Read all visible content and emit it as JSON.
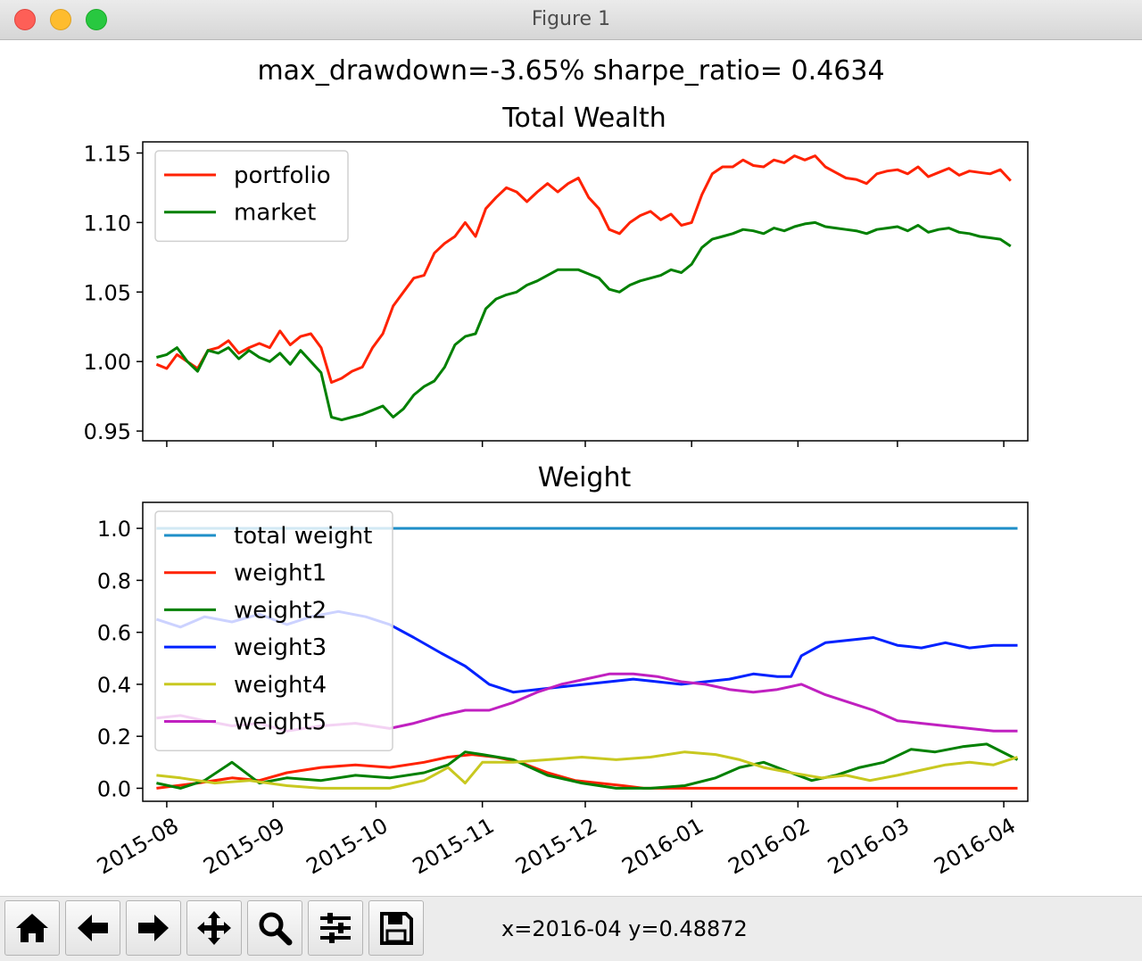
{
  "window": {
    "title": "Figure 1"
  },
  "figure": {
    "suptitle": "max_drawdown=-3.65%  sharpe_ratio= 0.4634"
  },
  "toolbar": {
    "buttons": [
      {
        "name": "home-button",
        "icon": "home-icon"
      },
      {
        "name": "back-button",
        "icon": "arrow-left-icon"
      },
      {
        "name": "forward-button",
        "icon": "arrow-right-icon"
      },
      {
        "name": "pan-button",
        "icon": "move-icon"
      },
      {
        "name": "zoom-button",
        "icon": "magnifier-icon"
      },
      {
        "name": "configure-subplots-button",
        "icon": "sliders-icon"
      },
      {
        "name": "save-button",
        "icon": "floppy-disk-icon"
      }
    ],
    "coordinates": "x=2016-04 y=0.48872"
  },
  "chart_data": [
    {
      "type": "line",
      "title": "Total Wealth",
      "xlim": [
        "2015-07-25",
        "2016-04-08"
      ],
      "ylim": [
        0.943,
        1.158
      ],
      "yticks": [
        0.95,
        1.0,
        1.05,
        1.1,
        1.15
      ],
      "yticklabels": [
        "0.95",
        "1.00",
        "1.05",
        "1.10",
        "1.15"
      ],
      "legend": "upper-left",
      "series": [
        {
          "name": "portfolio",
          "color": "#ff2200",
          "x": [
            "2015-07-29",
            "2015-08-01",
            "2015-08-04",
            "2015-08-07",
            "2015-08-10",
            "2015-08-13",
            "2015-08-16",
            "2015-08-19",
            "2015-08-22",
            "2015-08-25",
            "2015-08-28",
            "2015-08-31",
            "2015-09-03",
            "2015-09-06",
            "2015-09-09",
            "2015-09-12",
            "2015-09-15",
            "2015-09-18",
            "2015-09-21",
            "2015-09-24",
            "2015-09-27",
            "2015-09-30",
            "2015-10-03",
            "2015-10-06",
            "2015-10-09",
            "2015-10-12",
            "2015-10-15",
            "2015-10-18",
            "2015-10-21",
            "2015-10-24",
            "2015-10-27",
            "2015-10-30",
            "2015-11-02",
            "2015-11-05",
            "2015-11-08",
            "2015-11-11",
            "2015-11-14",
            "2015-11-17",
            "2015-11-20",
            "2015-11-23",
            "2015-11-26",
            "2015-11-29",
            "2015-12-02",
            "2015-12-05",
            "2015-12-08",
            "2015-12-11",
            "2015-12-14",
            "2015-12-17",
            "2015-12-20",
            "2015-12-23",
            "2015-12-26",
            "2015-12-29",
            "2016-01-01",
            "2016-01-04",
            "2016-01-07",
            "2016-01-10",
            "2016-01-13",
            "2016-01-16",
            "2016-01-19",
            "2016-01-22",
            "2016-01-25",
            "2016-01-28",
            "2016-01-31",
            "2016-02-03",
            "2016-02-06",
            "2016-02-09",
            "2016-02-12",
            "2016-02-15",
            "2016-02-18",
            "2016-02-21",
            "2016-02-24",
            "2016-02-27",
            "2016-03-01",
            "2016-03-04",
            "2016-03-07",
            "2016-03-10",
            "2016-03-13",
            "2016-03-16",
            "2016-03-19",
            "2016-03-22",
            "2016-03-25",
            "2016-03-28",
            "2016-03-31",
            "2016-04-03"
          ],
          "y": [
            0.998,
            0.995,
            1.005,
            1.0,
            0.995,
            1.008,
            1.01,
            1.015,
            1.006,
            1.01,
            1.013,
            1.01,
            1.022,
            1.012,
            1.018,
            1.02,
            1.01,
            0.985,
            0.988,
            0.993,
            0.996,
            1.01,
            1.02,
            1.04,
            1.05,
            1.06,
            1.062,
            1.078,
            1.085,
            1.09,
            1.1,
            1.09,
            1.11,
            1.118,
            1.125,
            1.122,
            1.115,
            1.122,
            1.128,
            1.122,
            1.128,
            1.132,
            1.118,
            1.11,
            1.095,
            1.092,
            1.1,
            1.105,
            1.108,
            1.102,
            1.106,
            1.098,
            1.1,
            1.12,
            1.135,
            1.14,
            1.14,
            1.145,
            1.141,
            1.14,
            1.145,
            1.143,
            1.148,
            1.145,
            1.148,
            1.14,
            1.136,
            1.132,
            1.131,
            1.128,
            1.135,
            1.137,
            1.138,
            1.135,
            1.14,
            1.133,
            1.136,
            1.139,
            1.134,
            1.137,
            1.136,
            1.135,
            1.138,
            1.13
          ]
        },
        {
          "name": "market",
          "color": "#008000",
          "x": [
            "2015-07-29",
            "2015-08-01",
            "2015-08-04",
            "2015-08-07",
            "2015-08-10",
            "2015-08-13",
            "2015-08-16",
            "2015-08-19",
            "2015-08-22",
            "2015-08-25",
            "2015-08-28",
            "2015-08-31",
            "2015-09-03",
            "2015-09-06",
            "2015-09-09",
            "2015-09-12",
            "2015-09-15",
            "2015-09-18",
            "2015-09-21",
            "2015-09-24",
            "2015-09-27",
            "2015-09-30",
            "2015-10-03",
            "2015-10-06",
            "2015-10-09",
            "2015-10-12",
            "2015-10-15",
            "2015-10-18",
            "2015-10-21",
            "2015-10-24",
            "2015-10-27",
            "2015-10-30",
            "2015-11-02",
            "2015-11-05",
            "2015-11-08",
            "2015-11-11",
            "2015-11-14",
            "2015-11-17",
            "2015-11-20",
            "2015-11-23",
            "2015-11-26",
            "2015-11-29",
            "2015-12-02",
            "2015-12-05",
            "2015-12-08",
            "2015-12-11",
            "2015-12-14",
            "2015-12-17",
            "2015-12-20",
            "2015-12-23",
            "2015-12-26",
            "2015-12-29",
            "2016-01-01",
            "2016-01-04",
            "2016-01-07",
            "2016-01-10",
            "2016-01-13",
            "2016-01-16",
            "2016-01-19",
            "2016-01-22",
            "2016-01-25",
            "2016-01-28",
            "2016-01-31",
            "2016-02-03",
            "2016-02-06",
            "2016-02-09",
            "2016-02-12",
            "2016-02-15",
            "2016-02-18",
            "2016-02-21",
            "2016-02-24",
            "2016-02-27",
            "2016-03-01",
            "2016-03-04",
            "2016-03-07",
            "2016-03-10",
            "2016-03-13",
            "2016-03-16",
            "2016-03-19",
            "2016-03-22",
            "2016-03-25",
            "2016-03-28",
            "2016-03-31",
            "2016-04-03"
          ],
          "y": [
            1.003,
            1.005,
            1.01,
            1.0,
            0.993,
            1.008,
            1.006,
            1.01,
            1.002,
            1.008,
            1.003,
            1.0,
            1.006,
            0.998,
            1.008,
            1.0,
            0.992,
            0.96,
            0.958,
            0.96,
            0.962,
            0.965,
            0.968,
            0.96,
            0.966,
            0.976,
            0.982,
            0.986,
            0.996,
            1.012,
            1.018,
            1.02,
            1.038,
            1.045,
            1.048,
            1.05,
            1.055,
            1.058,
            1.062,
            1.066,
            1.066,
            1.066,
            1.063,
            1.06,
            1.052,
            1.05,
            1.055,
            1.058,
            1.06,
            1.062,
            1.066,
            1.064,
            1.07,
            1.082,
            1.088,
            1.09,
            1.092,
            1.095,
            1.094,
            1.092,
            1.096,
            1.094,
            1.097,
            1.099,
            1.1,
            1.097,
            1.096,
            1.095,
            1.094,
            1.092,
            1.095,
            1.096,
            1.097,
            1.094,
            1.098,
            1.093,
            1.095,
            1.096,
            1.093,
            1.092,
            1.09,
            1.089,
            1.088,
            1.083
          ]
        }
      ]
    },
    {
      "type": "line",
      "title": "Weight",
      "xlim": [
        "2015-07-25",
        "2016-04-08"
      ],
      "ylim": [
        -0.05,
        1.1
      ],
      "yticks": [
        0.0,
        0.2,
        0.4,
        0.6,
        0.8,
        1.0
      ],
      "yticklabels": [
        "0.0",
        "0.2",
        "0.4",
        "0.6",
        "0.8",
        "1.0"
      ],
      "xticks": [
        "2015-08-01",
        "2015-09-01",
        "2015-10-01",
        "2015-11-01",
        "2015-12-01",
        "2016-01-01",
        "2016-02-01",
        "2016-03-01",
        "2016-04-01"
      ],
      "xticklabels": [
        "2015-08",
        "2015-09",
        "2015-10",
        "2015-11",
        "2015-12",
        "2016-01",
        "2016-02",
        "2016-03",
        "2016-04"
      ],
      "legend": "upper-left",
      "series": [
        {
          "name": "total weight",
          "color": "#1f8fc8",
          "x": [
            "2015-07-29",
            "2016-04-05"
          ],
          "y": [
            1.0,
            1.0
          ]
        },
        {
          "name": "weight1",
          "color": "#ff2200",
          "x": [
            "2015-07-29",
            "2015-08-10",
            "2015-08-20",
            "2015-08-28",
            "2015-09-05",
            "2015-09-15",
            "2015-09-25",
            "2015-10-05",
            "2015-10-15",
            "2015-10-22",
            "2015-10-29",
            "2015-11-05",
            "2015-11-12",
            "2015-11-20",
            "2015-11-28",
            "2015-12-05",
            "2015-12-12",
            "2015-12-18",
            "2016-04-05"
          ],
          "y": [
            0.0,
            0.02,
            0.04,
            0.03,
            0.06,
            0.08,
            0.09,
            0.08,
            0.1,
            0.12,
            0.13,
            0.12,
            0.1,
            0.06,
            0.03,
            0.02,
            0.01,
            0.0,
            0.0
          ]
        },
        {
          "name": "weight2",
          "color": "#008000",
          "x": [
            "2015-07-29",
            "2015-08-05",
            "2015-08-12",
            "2015-08-20",
            "2015-08-28",
            "2015-09-05",
            "2015-09-15",
            "2015-09-25",
            "2015-10-05",
            "2015-10-15",
            "2015-10-22",
            "2015-10-27",
            "2015-11-01",
            "2015-11-10",
            "2015-11-20",
            "2015-11-30",
            "2015-12-10",
            "2015-12-20",
            "2015-12-30",
            "2016-01-08",
            "2016-01-15",
            "2016-01-22",
            "2016-01-30",
            "2016-02-05",
            "2016-02-12",
            "2016-02-19",
            "2016-02-26",
            "2016-03-05",
            "2016-03-12",
            "2016-03-20",
            "2016-03-27",
            "2016-04-05"
          ],
          "y": [
            0.02,
            0.0,
            0.03,
            0.1,
            0.02,
            0.04,
            0.03,
            0.05,
            0.04,
            0.06,
            0.09,
            0.14,
            0.13,
            0.11,
            0.05,
            0.02,
            0.0,
            0.0,
            0.01,
            0.04,
            0.08,
            0.1,
            0.06,
            0.03,
            0.05,
            0.08,
            0.1,
            0.15,
            0.14,
            0.16,
            0.17,
            0.11
          ]
        },
        {
          "name": "weight3",
          "color": "#0022ff",
          "x": [
            "2015-07-29",
            "2015-08-05",
            "2015-08-12",
            "2015-08-20",
            "2015-08-28",
            "2015-09-05",
            "2015-09-12",
            "2015-09-20",
            "2015-09-28",
            "2015-10-05",
            "2015-10-12",
            "2015-10-20",
            "2015-10-27",
            "2015-11-03",
            "2015-11-10",
            "2015-11-17",
            "2015-11-24",
            "2015-12-01",
            "2015-12-08",
            "2015-12-15",
            "2015-12-22",
            "2015-12-29",
            "2016-01-05",
            "2016-01-12",
            "2016-01-19",
            "2016-01-26",
            "2016-01-30",
            "2016-02-02",
            "2016-02-09",
            "2016-02-16",
            "2016-02-23",
            "2016-03-01",
            "2016-03-08",
            "2016-03-15",
            "2016-03-22",
            "2016-03-29",
            "2016-04-05"
          ],
          "y": [
            0.65,
            0.62,
            0.66,
            0.64,
            0.67,
            0.63,
            0.66,
            0.68,
            0.66,
            0.63,
            0.58,
            0.52,
            0.47,
            0.4,
            0.37,
            0.38,
            0.39,
            0.4,
            0.41,
            0.42,
            0.41,
            0.4,
            0.41,
            0.42,
            0.44,
            0.43,
            0.43,
            0.51,
            0.56,
            0.57,
            0.58,
            0.55,
            0.54,
            0.56,
            0.54,
            0.55,
            0.55
          ]
        },
        {
          "name": "weight4",
          "color": "#c8c820",
          "x": [
            "2015-07-29",
            "2015-08-05",
            "2015-08-15",
            "2015-08-25",
            "2015-09-05",
            "2015-09-15",
            "2015-09-25",
            "2015-10-05",
            "2015-10-15",
            "2015-10-22",
            "2015-10-27",
            "2015-11-01",
            "2015-11-10",
            "2015-11-20",
            "2015-11-30",
            "2015-12-10",
            "2015-12-20",
            "2015-12-30",
            "2016-01-08",
            "2016-01-15",
            "2016-01-22",
            "2016-01-30",
            "2016-02-08",
            "2016-02-15",
            "2016-02-22",
            "2016-03-01",
            "2016-03-08",
            "2016-03-15",
            "2016-03-22",
            "2016-03-29",
            "2016-04-05"
          ],
          "y": [
            0.05,
            0.04,
            0.02,
            0.03,
            0.01,
            0.0,
            0.0,
            0.0,
            0.03,
            0.08,
            0.02,
            0.1,
            0.1,
            0.11,
            0.12,
            0.11,
            0.12,
            0.14,
            0.13,
            0.11,
            0.08,
            0.06,
            0.04,
            0.05,
            0.03,
            0.05,
            0.07,
            0.09,
            0.1,
            0.09,
            0.12
          ]
        },
        {
          "name": "weight5",
          "color": "#c020c0",
          "x": [
            "2015-07-29",
            "2015-08-05",
            "2015-08-12",
            "2015-08-20",
            "2015-08-28",
            "2015-09-05",
            "2015-09-15",
            "2015-09-25",
            "2015-10-05",
            "2015-10-12",
            "2015-10-20",
            "2015-10-27",
            "2015-11-03",
            "2015-11-10",
            "2015-11-17",
            "2015-11-24",
            "2015-12-01",
            "2015-12-08",
            "2015-12-15",
            "2015-12-22",
            "2015-12-29",
            "2016-01-05",
            "2016-01-12",
            "2016-01-19",
            "2016-01-26",
            "2016-02-02",
            "2016-02-09",
            "2016-02-16",
            "2016-02-23",
            "2016-03-01",
            "2016-03-08",
            "2016-03-15",
            "2016-03-22",
            "2016-03-29",
            "2016-04-05"
          ],
          "y": [
            0.27,
            0.28,
            0.26,
            0.24,
            0.25,
            0.22,
            0.24,
            0.25,
            0.23,
            0.25,
            0.28,
            0.3,
            0.3,
            0.33,
            0.37,
            0.4,
            0.42,
            0.44,
            0.44,
            0.43,
            0.41,
            0.4,
            0.38,
            0.37,
            0.38,
            0.4,
            0.36,
            0.33,
            0.3,
            0.26,
            0.25,
            0.24,
            0.23,
            0.22,
            0.22
          ]
        }
      ]
    }
  ]
}
